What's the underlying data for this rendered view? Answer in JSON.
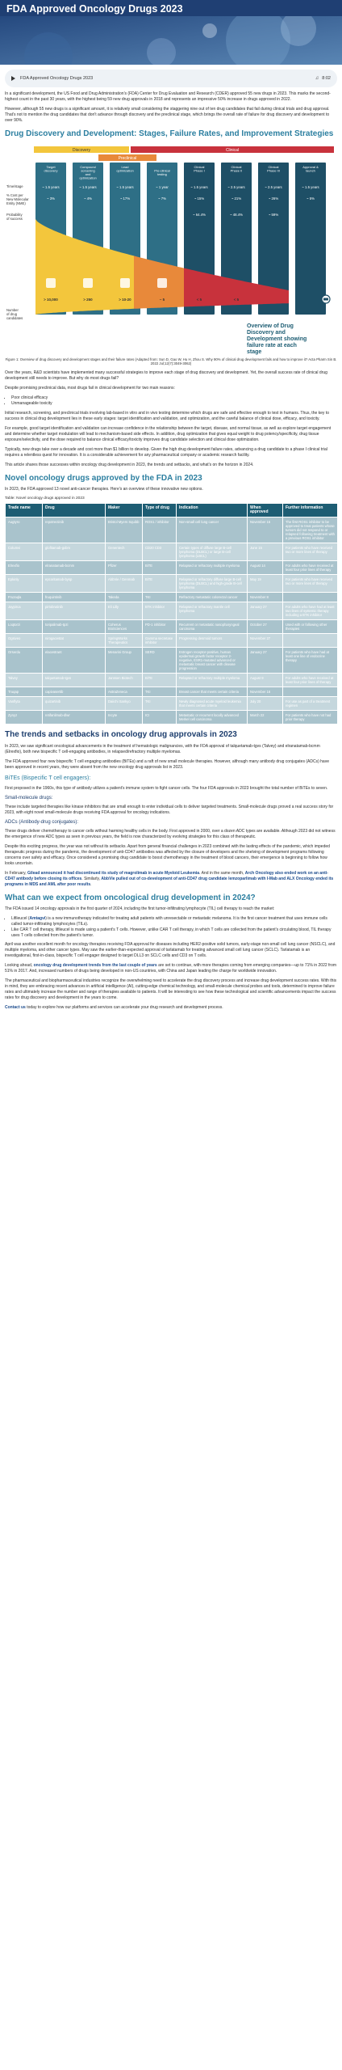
{
  "header": {
    "title": "FDA Approved Oncology Drugs 2023"
  },
  "audio": {
    "title": "FDA Approved Oncology Drugs 2023",
    "time": "8:02"
  },
  "intro": {
    "p1": "In a significant development, the US Food and Drug Administration's (FDA) Center for Drug Evaluation and Research (CDER) approved 55 new drugs in 2023. This marks the second-highest count in the past 30 years, with the highest being 59 new drug approvals in 2018 and represents an impressive 50% increase in drugs approved in 2022.",
    "p2": "However, although 55 new drugs is a significant amount, it is relatively small considering the staggering nine out of ten drug candidates that fail during clinical trials and drug approval. That's not to mention the drug candidates that don't advance through discovery and the preclinical stage, which brings the overall rate of failure for drug discovery and development to over 90%."
  },
  "section1": {
    "title": "Drug Discovery and Development: Stages, Failure Rates, and Improvement Strategies"
  },
  "figure": {
    "phases": {
      "discovery": "Discovery",
      "preclinical": "Preclinical",
      "clinical": "Clinical"
    },
    "stages": [
      "Target discovery",
      "Compound screening and optimization",
      "Lead optimization",
      "Pre-clinical testing",
      "Clinical Phase I",
      "Clinical Phase II",
      "Clinical Phase III",
      "Approval & launch"
    ],
    "row_labels": {
      "time": "Time/stage",
      "cost": "% Cost per New Molecular Entity (NME)",
      "prob": "Probability of success",
      "num": "Number of drug candidates"
    },
    "times": [
      "~ 1.5 years",
      "~ 1.5 years",
      "~ 1.5 years",
      "~ 1 year",
      "~ 1.5 years",
      "~ 2.5 years",
      "~ 2.5 years",
      "~ 1.5 years"
    ],
    "costs": [
      "~ 3%",
      "~ 4%",
      "~ 17%",
      "~ 7%",
      "~ 15%",
      "~ 21%",
      "~ 26%",
      "~ 5%"
    ],
    "probs": [
      "",
      "",
      "",
      "",
      "~ 64.4%",
      "~ 48.4%",
      "~ 59%",
      ""
    ],
    "counts": [
      "> 10,000",
      "> 250",
      "> 10-20",
      "~ 5",
      "< 5",
      "< 5"
    ],
    "overview": "Overview of Drug Discovery and Development showing failure rate at each stage",
    "caption": "Figure 1: Overview of drug discovery and development stages and their failure rates (Adapted from: Sun D, Gao W, Hu H, Zhou S. Why 90% of clinical drug development fails and how to improve it? Acta Pharm Sin B. 2022 Jul;12(7):3049-3062)"
  },
  "section1_text": {
    "p1": "Over the years, R&D scientists have implemented many successful strategies to improve each stage of drug discovery and development. Yet, the overall success rate of clinical drug development still needs to improve. But why do most drugs fail?",
    "p2": "Despite promising preclinical data, most drugs fail in clinical development for two main reasons:",
    "bullets": [
      "Poor clinical efficacy",
      "Unmanageable toxicity"
    ],
    "p3": "Initial research, screening, and preclinical trials involving lab-based in vitro and in vivo testing determine which drugs are safe and effective enough to test in humans. Thus, the key to success in clinical drug development lies in these early stages: target identification and validation, and optimization, and the careful balance of clinical dose, efficacy, and toxicity.",
    "p4": "For example, good target identification and validation can increase confidence in the relationship between the target, disease, and normal tissue, as well as explore target engagement and determine whether target modulation will lead to mechanism-based side effects. In addition, drug optimization that gives equal weight to drug potency/specificity, drug tissue exposure/selectivity, and the dose required to balance clinical efficacy/toxicity improves drug candidate selection and clinical dose optimization.",
    "p5": "Typically, new drugs take over a decade and cost more than $1 billion to develop. Given the high drug development failure rates, advancing a drug candidate to a phase I clinical trial requires a relentless quest for innovation. It is a considerable achievement for any pharmaceutical company or academic research facility.",
    "p6": "This article shares those successes within oncology drug development in 2023, the trends and setbacks, and what's on the horizon in 2024."
  },
  "section2": {
    "title": "Novel oncology drugs approved by the FDA in 2023",
    "intro": "In 2023, the FDA approved 13 novel anti-cancer therapies. Here's an overview of these innovative new options.",
    "table_caption": "Table: Novel oncology drugs approved in 2023"
  },
  "table": {
    "headers": [
      "Trade name",
      "Drug",
      "Maker",
      "Type of drug",
      "Indication",
      "When approved",
      "Further information"
    ],
    "rows": [
      [
        "Augtyro",
        "repotrectinib",
        "Bristol Myers Squibb",
        "ROS1 / inhibitor",
        "Non-small cell lung cancer",
        "November 15",
        "The first ROS1 inhibitor to be approved to treat patients whose tumors did not respond to or relapsed following treatment with a previous ROS1 inhibitor"
      ],
      [
        "Columvi",
        "glofitamab-gxbm",
        "Genentech",
        "CD20 CD3",
        "Certain types of diffuse large B-cell lymphoma (DLBCL) or large B-cell lymphoma (LBCL)",
        "June 15",
        "For patients who have received two or more lines of therapy"
      ],
      [
        "Elrexfio",
        "elranatamab-bcmm",
        "Pfizer",
        "BiTE",
        "Relapsed or refractory multiple myeloma",
        "August 14",
        "For adults who have received at least four prior lines of therapy"
      ],
      [
        "Epkinly",
        "epcoritamab-bysp",
        "AbbVie / Genmab",
        "BiTE",
        "Relapsed or refractory diffuse large B-cell lymphoma (DLBCL) and high-grade B-cell lymphoma",
        "May 19",
        "For patients who have received two or more lines of therapy"
      ],
      [
        "Fruzaqla",
        "fruquintinib",
        "Takeda",
        "TKI",
        "Refractory metastatic colorectal cancer",
        "November 8",
        ""
      ],
      [
        "Jaypirca",
        "pirtobrutinib",
        "Eli Lilly",
        "BTK inhibitor",
        "Relapsed or refractory mantle cell lymphoma",
        "January 27",
        "For adults who have had at least two lines of systemic therapy including a BTK inhibitor"
      ],
      [
        "Loqtorzi",
        "toripalimab-tpzi",
        "Coherus BioSciences",
        "PD-1 inhibitor",
        "Recurrent or metastatic nasopharyngeal carcinoma",
        "October 27",
        "Used with or following other therapies"
      ],
      [
        "Ogsiveo",
        "nirogacestat",
        "SpringWorks Therapeutics",
        "Gamma secretase inhibitor",
        "Progressing desmoid tumors",
        "November 27",
        ""
      ],
      [
        "Orserdu",
        "elacestrant",
        "Menarini Group",
        "SERD",
        "Estrogen receptor-positive, human epidermal growth factor receptor 2-negative, ESR1-mutated advanced or metastatic breast cancer with disease progression",
        "January 27",
        "For patients who have had at least one line of endocrine therapy"
      ],
      [
        "Talvey",
        "talquetamab-tgvs",
        "Janssen Biotech",
        "BiTE",
        "Relapsed or refractory multiple myeloma",
        "August 9",
        "For adults who have received at least four prior lines of therapy"
      ],
      [
        "Truqap",
        "capivasertib",
        "AstraZeneca",
        "TKI",
        "Breast cancer that meets certain criteria",
        "November 16",
        ""
      ],
      [
        "Vanflyta",
        "quizartinib",
        "Daiichi Sankyo",
        "TKI",
        "Newly diagnosed acute myeloid leukemia that meets certain criteria",
        "July 20",
        "For use as part of a treatment regimen"
      ],
      [
        "Zynyz",
        "retifanlimab-dlwr",
        "Incyte",
        "ICI",
        "Metastatic or recurrent locally advanced Merkel cell carcinoma",
        "March 22",
        "For patients who have not had prior therapy"
      ]
    ]
  },
  "section3": {
    "title": "The trends and setbacks in oncology drug approvals in 2023",
    "p1": "In 2023, we saw significant oncological advancements in the treatment of hematologic malignancies, with the FDA approval of talquetamab-tgvs (Talvey) and elranatamab-bcmm (Elrexfio), both new bispecific T cell-engaging antibodies, in relapsed/refractory multiple myelomas.",
    "p2": "The FDA approved four new bispecific T cell engaging antibodies (BiTEs) and a raft of new small molecule therapies. However, although many antibody drug conjugates (ADCs) have been approved in recent years, they were absent from the new oncology drug approvals list in 2023.",
    "bites_title": "BiTEs (Bispecific T cell engagers):",
    "bites_text": "First proposed in the 1960s, this type of antibody utilizes a patient's immune system to fight cancer cells. The four FDA approvals in 2023 brought the total number of BiTEs to seven.",
    "sm_title": "Small-molecule drugs:",
    "sm_text": "These include targeted therapies like kinase inhibitors that are small enough to enter individual cells to deliver targeted treatments. Small-molecule drugs proved a real success story for 2023, with eight novel small-molecule drugs receiving FDA approval for oncology indications.",
    "adc_title": "ADCs (Antibody-drug conjugates):",
    "adc_p1": "These drugs deliver chemotherapy to cancer cells without harming healthy cells in the body. First approved in 2000, over a dozen ADC types are available. Although 2023 did not witness the emergence of new ADC types as seen in previous years, the field is now characterized by evolving strategies for this class of therapeutic.",
    "adc_p2": "Despite this exciting progress, the year was not without its setbacks. Apart from general financial challenges in 2023 combined with the lasting effects of the pandemic, which impeded therapeutic progress during the pandemic, the development of anti-CD47 antibodies was affected by the closure of developers and the shelving of development programs following concerns over safety and efficacy. Once considered a promising drug candidate to boost chemotherapy in the treatment of blood cancers, their emergence is beginning to follow how looks uncertain.",
    "adc_p3_a": "In February, ",
    "adc_p3_hl1": "Gilead announced it had discontinued its study of magrolimab in acute Myeloid Leukemia",
    "adc_p3_b": ". And in the same month, ",
    "adc_p3_hl2": "Arch Oncology also ended work on an anti-CD47 antibody before closing its offices",
    "adc_p3_c": ". Similarly, ",
    "adc_p3_hl3": "AbbVie pulled out of co-development of anti-CD47 drug candidate lemzoparlimab with I-Mab and ALX Oncology ended its programs in MDS and AML after poor results",
    "adc_p3_d": "."
  },
  "section4": {
    "title": "What can we expect from oncological drug development in 2024?",
    "p1": "The FDA issued 14 oncology approvals in the first quarter of 2024, including the first tumor-infiltrating lymphocyte (TIL) cell therapy to reach the market:",
    "b1_lead": "Lifileucel (",
    "b1_brand": "Amtagvi",
    "b1_text": ") is a new immunotherapy indicated for treating adult patients with unresectable or metastatic melanoma. It is the first cancer treatment that uses immune cells called tumor-infiltrating lymphocytes (TILs).",
    "b2_text": "Like CAR T cell therapy, lifileucel is made using a patient's T cells. However, unlike CAR T cell therapy, in which T cells are collected from the patient's circulating blood, TIL therapy uses T cells collected from the patient's tumor.",
    "p2": "April was another excellent month for oncology therapies receiving FDA approval for diseases including HER2-positive solid tumors, early-stage non-small cell lung cancer (NSCLC), and multiple myeloma, and other cancer types. May saw the earlier-than-expected approval of tarlatamab for treating advanced small cell lung cancer (SCLC). Tarlatamab is an investigational, first-in-class, bispecific T cell engager designed to target DLL3 on SCLC cells and CD3 on T cells.",
    "p3_a": "Looking ahead, ",
    "p3_hl": "oncology drug development trends from the last couple of years",
    "p3_b": " are set to continue, with more therapies coming from emerging companies—up to 71% in 2022 from 51% in 2017. And, increased numbers of drugs being developed in non-US countries, with China and Japan leading the charge for worldwide innovation.",
    "p4": "The pharmaceutical and biopharmaceutical industries recognize the overwhelming need to accelerate the drug discovery process and increase drug development success rates. With this in mind, they are embracing recent advances in artificial intelligence (AI), cutting-edge chemical technology, and small-molecule chemical probes and tools, determined to improve failure rates and ultimately increase the number and range of therapies available to patients. It will be interesting to see how these technological and scientific advancements impact the success rates for drug discovery and development in the years to come.",
    "cta_link": "Contact us",
    "cta_text": " today to explore how our platforms and services can accelerate your drug research and development process."
  },
  "colors": {
    "header_bg": "#1f3f73",
    "heading": "#2c7fa0",
    "table_header": "#1d5d73",
    "funnel_yellow": "#f3c63c",
    "funnel_orange": "#e8893a",
    "funnel_red": "#c8323c",
    "stage_dark": "#1e4f66",
    "stage_teal": "#2e6f86"
  }
}
